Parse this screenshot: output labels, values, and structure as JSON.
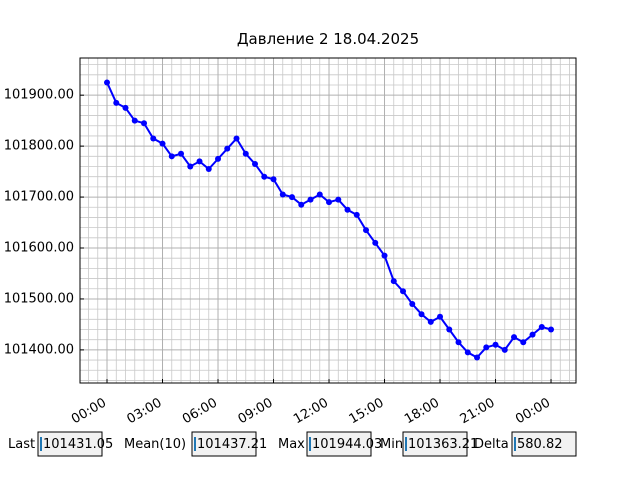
{
  "chart_data": {
    "type": "line",
    "title": "Давление 2 18.04.2025",
    "x": [
      0,
      0.5,
      1,
      1.5,
      2,
      2.5,
      3,
      3.5,
      4,
      4.5,
      5,
      5.5,
      6,
      6.5,
      7,
      7.5,
      8,
      8.5,
      9,
      9.5,
      10,
      10.5,
      11,
      11.5,
      12,
      12.5,
      13,
      13.5,
      14,
      14.5,
      15,
      15.5,
      16,
      16.5,
      17,
      17.5,
      18,
      18.5,
      19,
      19.5,
      20,
      20.5,
      21,
      21.5,
      22,
      22.5,
      23,
      23.5,
      24
    ],
    "series": [
      {
        "color": "#0000ff",
        "values": [
          101925,
          101885,
          101875,
          101850,
          101845,
          101815,
          101805,
          101780,
          101785,
          101760,
          101770,
          101755,
          101775,
          101795,
          101815,
          101785,
          101765,
          101740,
          101735,
          101705,
          101700,
          101685,
          101695,
          101705,
          101690,
          101695,
          101675,
          101665,
          101635,
          101610,
          101585,
          101535,
          101515,
          101490,
          101470,
          101455,
          101465,
          101440,
          101415,
          101395,
          101385,
          101405,
          101410,
          101400,
          101425,
          101415,
          101430,
          101445,
          101440
        ]
      }
    ],
    "xlim": [
      -1.46,
      25.35
    ],
    "ylim": [
      101335,
      101973
    ],
    "xticks": [
      {
        "value": 0,
        "label": "00:00"
      },
      {
        "value": 3,
        "label": "03:00"
      },
      {
        "value": 6,
        "label": "06:00"
      },
      {
        "value": 9,
        "label": "09:00"
      },
      {
        "value": 12,
        "label": "12:00"
      },
      {
        "value": 15,
        "label": "15:00"
      },
      {
        "value": 18,
        "label": "18:00"
      },
      {
        "value": 21,
        "label": "21:00"
      },
      {
        "value": 24,
        "label": "00:00"
      }
    ],
    "yticks": [
      {
        "value": 101400,
        "label": "101400.00"
      },
      {
        "value": 101500,
        "label": "101500.00"
      },
      {
        "value": 101600,
        "label": "101600.00"
      },
      {
        "value": 101700,
        "label": "101700.00"
      },
      {
        "value": 101800,
        "label": "101800.00"
      },
      {
        "value": 101900,
        "label": "101900.00"
      }
    ],
    "xminorticks": [
      -1,
      -0.5,
      0.5,
      1,
      1.5,
      2,
      2.5,
      3.5,
      4,
      4.5,
      5,
      5.5,
      6.5,
      7,
      7.5,
      8,
      8.5,
      9.5,
      10,
      10.5,
      11,
      11.5,
      12.5,
      13,
      13.5,
      14,
      14.5,
      15.5,
      16,
      16.5,
      17,
      17.5,
      18.5,
      19,
      19.5,
      20,
      20.5,
      21.5,
      22,
      22.5,
      23,
      23.5,
      24.5,
      25
    ],
    "yminorticks": [
      101340,
      101360,
      101380,
      101420,
      101440,
      101460,
      101480,
      101520,
      101540,
      101560,
      101580,
      101620,
      101640,
      101660,
      101680,
      101720,
      101740,
      101760,
      101780,
      101820,
      101840,
      101860,
      101880,
      101920,
      101940,
      101960
    ],
    "grid": true,
    "minor_grid": true
  },
  "widgets": [
    {
      "label": "Last",
      "value": "101431.05"
    },
    {
      "label": "Mean(10)",
      "value": "101437.21"
    },
    {
      "label": "Max",
      "value": "101944.03"
    },
    {
      "label": "Min",
      "value": "101363.21"
    },
    {
      "label": "Delta",
      "value": "580.82"
    }
  ]
}
